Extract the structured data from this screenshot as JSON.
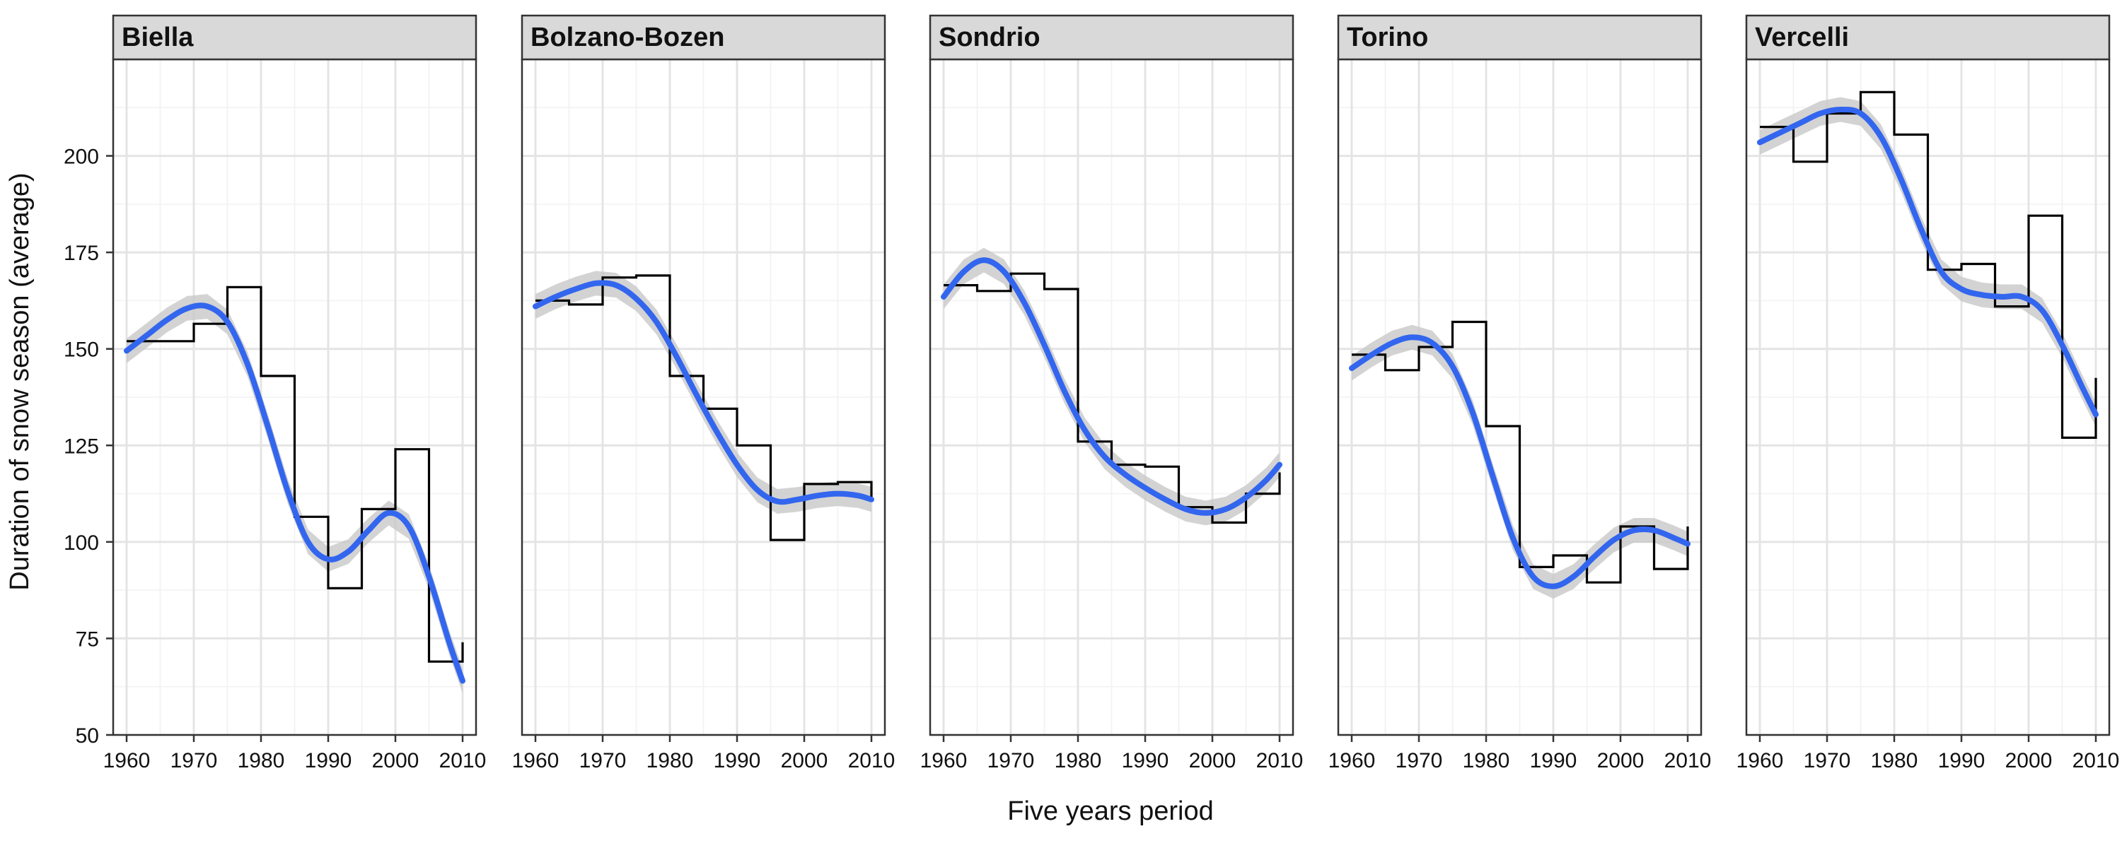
{
  "chart_data": {
    "type": "line",
    "xlabel": "Five years period",
    "ylabel": "Duration of snow season (average)",
    "xlim": [
      1958,
      2012
    ],
    "ylim": [
      50,
      225
    ],
    "x_ticks": [
      1960,
      1970,
      1980,
      1990,
      2000,
      2010
    ],
    "y_ticks": [
      50,
      75,
      100,
      125,
      150,
      175,
      200
    ],
    "grid": true,
    "panels": [
      {
        "name": "Biella",
        "step": {
          "x": [
            1960,
            1965,
            1970,
            1975,
            1980,
            1985,
            1990,
            1995,
            2000,
            2005,
            2010
          ],
          "y": [
            152,
            152,
            156.5,
            166,
            143,
            106.5,
            88,
            108.5,
            124,
            69,
            74
          ]
        },
        "smooth": {
          "x": [
            1960,
            1963,
            1966,
            1969,
            1972,
            1975,
            1978,
            1981,
            1984,
            1987,
            1990,
            1993,
            1996,
            1999,
            2002,
            2005,
            2008,
            2010
          ],
          "y": [
            149.5,
            153.5,
            157.5,
            160.5,
            161,
            157,
            146,
            130,
            113,
            100,
            95.5,
            97.5,
            103,
            107.5,
            104,
            91,
            74,
            64
          ]
        }
      },
      {
        "name": "Bolzano-Bozen",
        "step": {
          "x": [
            1960,
            1965,
            1970,
            1975,
            1980,
            1985,
            1990,
            1995,
            2000,
            2005,
            2010
          ],
          "y": [
            162.5,
            161.5,
            168.5,
            169,
            143,
            134.5,
            125,
            100.5,
            115,
            115.5,
            110.5
          ]
        },
        "smooth": {
          "x": [
            1960,
            1963,
            1966,
            1969,
            1972,
            1975,
            1978,
            1981,
            1984,
            1987,
            1990,
            1993,
            1996,
            1999,
            2002,
            2005,
            2008,
            2010
          ],
          "y": [
            161,
            163.5,
            165.5,
            167,
            166.5,
            163,
            157,
            148,
            138,
            128.5,
            120,
            113.5,
            110.5,
            111,
            112,
            112.5,
            112,
            111
          ]
        }
      },
      {
        "name": "Sondrio",
        "step": {
          "x": [
            1960,
            1965,
            1970,
            1975,
            1980,
            1985,
            1990,
            1995,
            2000,
            2005,
            2010
          ],
          "y": [
            166.5,
            165,
            169.5,
            165.5,
            126,
            120,
            119.5,
            109,
            105,
            112.5,
            118
          ]
        },
        "smooth": {
          "x": [
            1960,
            1963,
            1966,
            1969,
            1972,
            1975,
            1978,
            1981,
            1984,
            1987,
            1990,
            1993,
            1996,
            1999,
            2002,
            2005,
            2008,
            2010
          ],
          "y": [
            163.5,
            170,
            173,
            170,
            162,
            151,
            139,
            129,
            122,
            117.5,
            114,
            111,
            108.5,
            107.5,
            108.5,
            111.5,
            116,
            120
          ]
        }
      },
      {
        "name": "Torino",
        "step": {
          "x": [
            1960,
            1965,
            1970,
            1975,
            1980,
            1985,
            1990,
            1995,
            2000,
            2005,
            2010
          ],
          "y": [
            148.5,
            144.5,
            150.5,
            157,
            130,
            93.5,
            96.5,
            89.5,
            104,
            93,
            104
          ]
        },
        "smooth": {
          "x": [
            1960,
            1963,
            1966,
            1969,
            1972,
            1975,
            1978,
            1981,
            1984,
            1987,
            1990,
            1993,
            1996,
            1999,
            2002,
            2005,
            2008,
            2010
          ],
          "y": [
            145,
            148.5,
            151.5,
            153,
            151.5,
            145.5,
            133.5,
            117,
            101,
            91,
            88.5,
            91,
            96,
            100.5,
            103,
            103,
            101,
            99.5
          ]
        }
      },
      {
        "name": "Vercelli",
        "step": {
          "x": [
            1960,
            1965,
            1970,
            1975,
            1980,
            1985,
            1990,
            1995,
            2000,
            2005,
            2010
          ],
          "y": [
            207.5,
            198.5,
            211,
            216.5,
            205.5,
            170.5,
            172,
            161,
            184.5,
            127,
            142.5
          ]
        },
        "smooth": {
          "x": [
            1960,
            1963,
            1966,
            1969,
            1972,
            1975,
            1978,
            1981,
            1984,
            1987,
            1990,
            1993,
            1996,
            1999,
            2002,
            2005,
            2008,
            2010
          ],
          "y": [
            203.5,
            206,
            208.5,
            211,
            212,
            211,
            205,
            194,
            181,
            170,
            165.5,
            164,
            163.5,
            163.5,
            160,
            151,
            140,
            133
          ]
        }
      }
    ],
    "colors": {
      "smooth_line": "#3366ee",
      "ribbon": "#c8c8c8",
      "step_line": "#000000",
      "strip_fill": "#d9d9d9",
      "grid_major": "#e4e4e4",
      "grid_minor": "#f2f2f2"
    }
  }
}
